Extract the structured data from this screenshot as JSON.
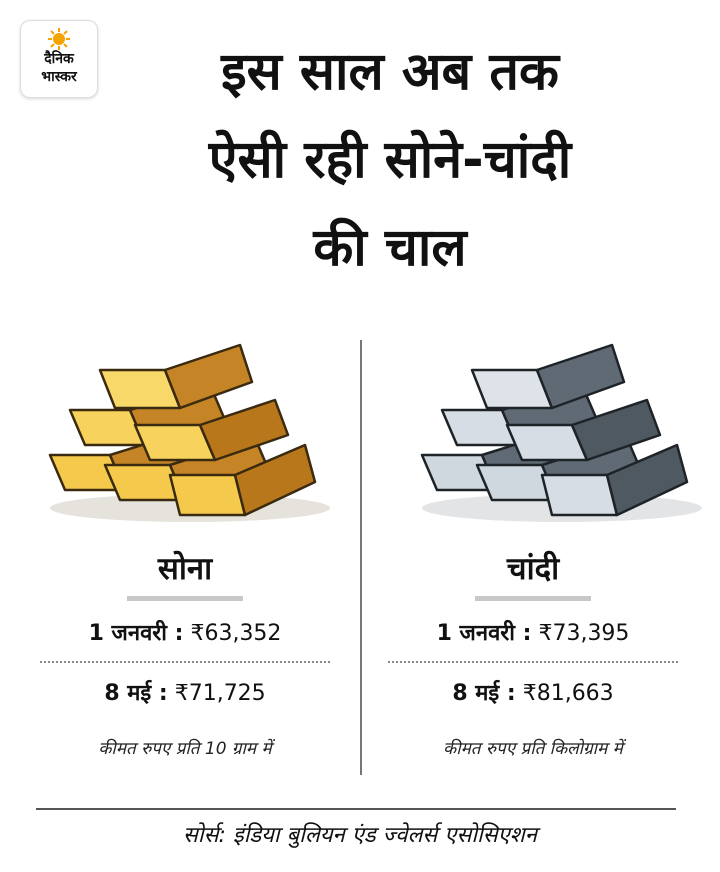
{
  "brand": {
    "logo_line1": "दैनिक",
    "logo_line2": "भास्कर",
    "accent": "#f5a300"
  },
  "title_lines": [
    "इस साल अब तक",
    "ऐसी रही सोने-चांदी",
    "की चाल"
  ],
  "gold": {
    "name": "सोना",
    "row1_label": "1 जनवरी :",
    "row1_value": "₹63,352",
    "row2_label": "8 मई :",
    "row2_value": "₹71,725",
    "note": "कीमत रुपए प्रति 10 ग्राम में"
  },
  "silver": {
    "name": "चांदी",
    "row1_label": "1 जनवरी :",
    "row1_value": "₹73,395",
    "row2_label": "8 मई :",
    "row2_value": "₹81,663",
    "note": "कीमत रुपए प्रति किलोग्राम में"
  },
  "source": "सोर्स: इंडिया बुलियन एंड ज्वेलर्स एसोसिएशन",
  "colors": {
    "gold_light": "#f4c94c",
    "gold_dark": "#b9771c",
    "silver_light": "#cfd7df",
    "silver_dark": "#4f5962"
  }
}
